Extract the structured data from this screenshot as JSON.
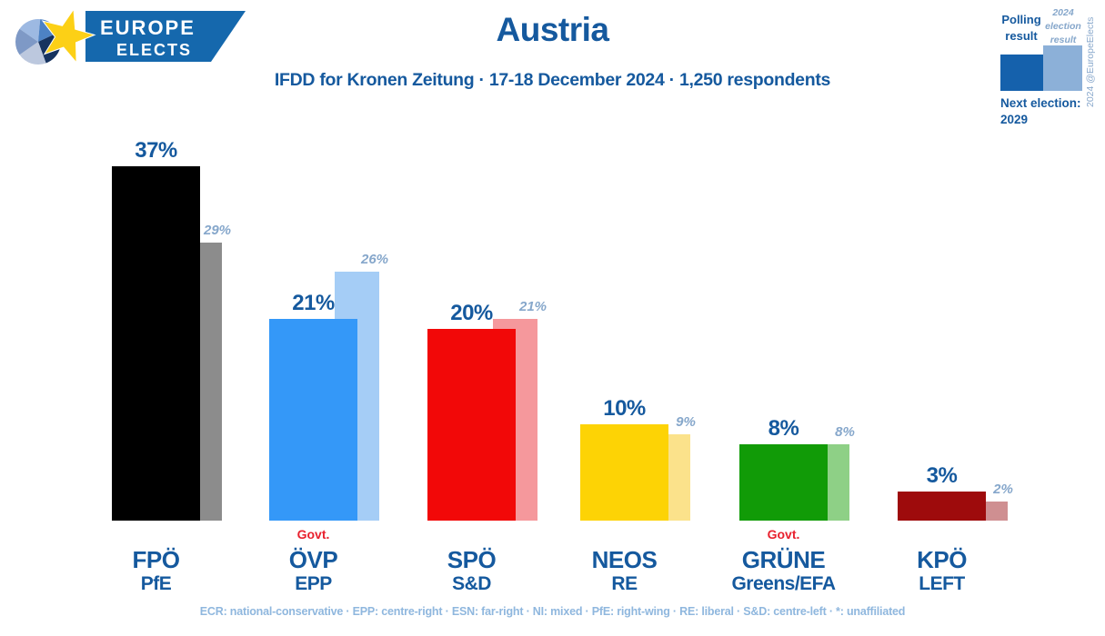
{
  "logo": {
    "line1": "EUROPE",
    "line2": "ELECTS"
  },
  "header": {
    "title": "Austria",
    "subtitle": "IFDD for Kronen Zeitung · 17-18 December 2024 · 1,250 respondents"
  },
  "legend": {
    "polling": "Polling result",
    "election": "2024 election result",
    "polling_color": "#1561ac",
    "election_color": "#8cb0d8",
    "credit": "2024 @EuropeElects",
    "next_election_label": "Next election:",
    "next_election_year": "2029"
  },
  "govt_label": "Govt.",
  "footer": "ECR: national-conservative · EPP: centre-right · ESN: far-right · NI: mixed · PfE: right-wing · RE: liberal · S&D: centre-left · *: unaffiliated",
  "chart_data": {
    "type": "bar",
    "title": "Austria",
    "subtitle": "IFDD for Kronen Zeitung · 17-18 December 2024 · 1,250 respondents",
    "categories": [
      "FPÖ",
      "ÖVP",
      "SPÖ",
      "NEOS",
      "GRÜNE",
      "KPÖ"
    ],
    "ep_groups": [
      "PfE",
      "EPP",
      "S&D",
      "RE",
      "Greens/EFA",
      "LEFT"
    ],
    "series": [
      {
        "name": "Polling result",
        "values": [
          37,
          21,
          20,
          10,
          8,
          3
        ]
      },
      {
        "name": "2024 election result",
        "values": [
          29,
          26,
          21,
          9,
          8,
          2
        ]
      }
    ],
    "value_labels": [
      [
        "37%",
        "21%",
        "20%",
        "10%",
        "8%",
        "3%"
      ],
      [
        "29%",
        "26%",
        "21%",
        "9%",
        "8%",
        "2%"
      ]
    ],
    "bar_colors": [
      "#000000",
      "#3498f8",
      "#f20808",
      "#fdd305",
      "#119b07",
      "#9e0b0c"
    ],
    "secondary_bar_colors": [
      "#8c8c8c",
      "#a5cdf6",
      "#f5989c",
      "#fbe28b",
      "#8ed086",
      "#cf8f91"
    ],
    "in_government": [
      false,
      true,
      false,
      false,
      true,
      false
    ],
    "ylim": [
      0,
      40
    ],
    "grid": false,
    "legend_position": "top-right"
  }
}
